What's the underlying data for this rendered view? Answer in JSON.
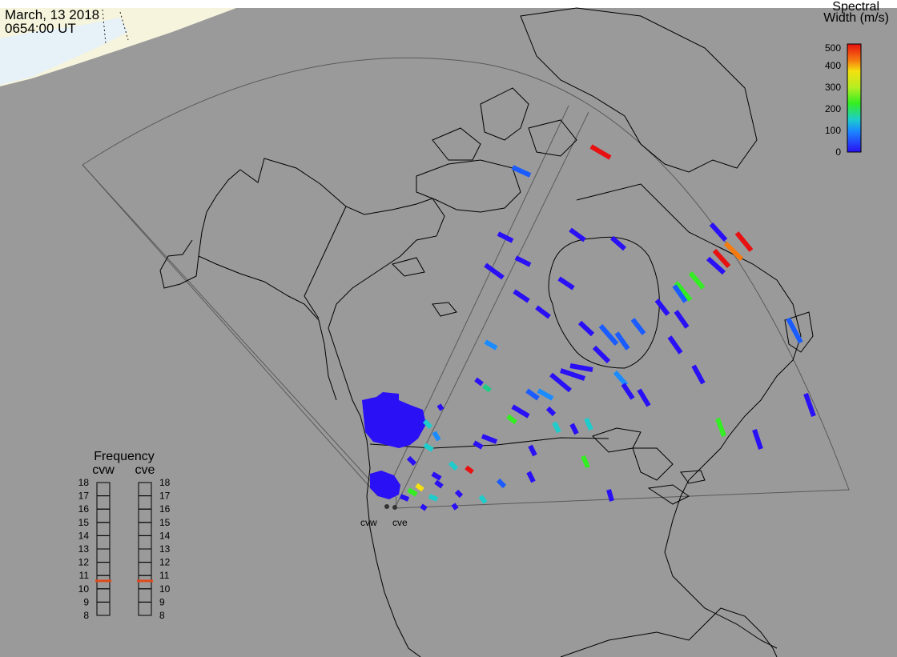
{
  "header": {
    "date": "March, 13 2018",
    "time": "0654:00 UT"
  },
  "colorbar": {
    "title_line1": "Spectral",
    "title_line2": "Width (m/s)",
    "ticks": [
      "500",
      "400",
      "300",
      "200",
      "100",
      "0"
    ],
    "min": 0,
    "max": 500
  },
  "frequency": {
    "title": "Frequency",
    "radars": [
      {
        "name": "cvw",
        "value_mhz": 10.6
      },
      {
        "name": "cve",
        "value_mhz": 10.6
      }
    ],
    "scale": [
      "18",
      "17",
      "16",
      "15",
      "14",
      "13",
      "12",
      "11",
      "10",
      "9",
      "8"
    ],
    "marker_color": "#e04a1a"
  },
  "sites": [
    {
      "name": "cvw"
    },
    {
      "name": "cve"
    }
  ],
  "colors": {
    "background": "#9a9a9a",
    "land_outline": "#000000",
    "fov_outline": "#5a5a5a",
    "terminator": "#f6f4dc",
    "ice": "#e6f2fb"
  }
}
